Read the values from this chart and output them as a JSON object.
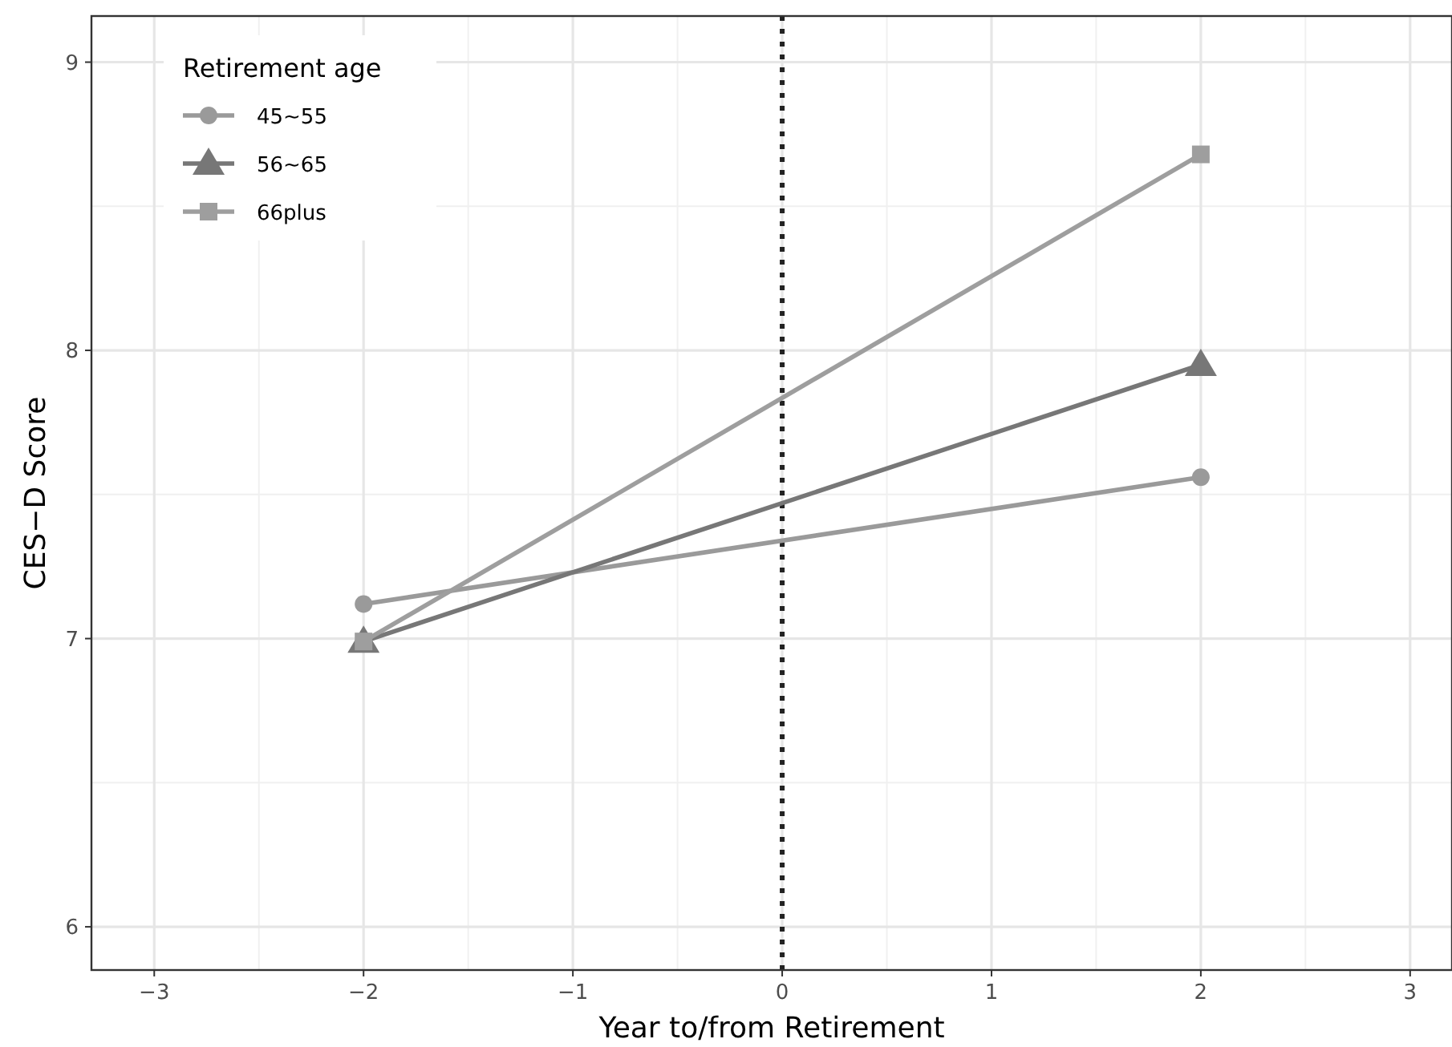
{
  "chart_data": {
    "type": "line",
    "xlabel": "Year to/from Retirement",
    "ylabel": "CES−D Score",
    "legend_title": "Retirement age",
    "legend": "top left",
    "grid": true,
    "xlim": [
      -3.3,
      3.2
    ],
    "ylim": [
      5.85,
      9.16
    ],
    "xticks": [
      -3,
      -2,
      -1,
      0,
      1,
      2,
      3
    ],
    "yticks": [
      6,
      7,
      8,
      9
    ],
    "x": [
      -2,
      2
    ],
    "series": [
      {
        "name": "45~55",
        "color": "#9a9a9a",
        "values": [
          7.12,
          7.56
        ],
        "marker": "circle"
      },
      {
        "name": "56~65",
        "color": "#777777",
        "values": [
          6.99,
          7.95
        ],
        "marker": "triangle"
      },
      {
        "name": "66plus",
        "color": "#9e9e9e",
        "values": [
          6.99,
          8.68
        ],
        "marker": "square"
      }
    ],
    "ref_lines": [
      {
        "axis": "x",
        "value": 0,
        "color": "#222222",
        "line_style": "dotted"
      }
    ]
  }
}
